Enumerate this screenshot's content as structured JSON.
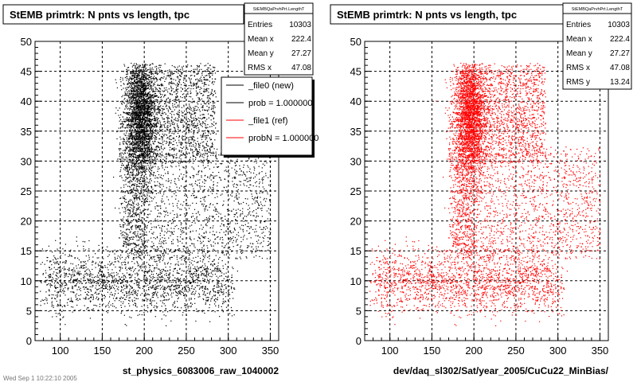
{
  "chart_data": [
    {
      "type": "scatter",
      "title": "StEMB primtrk: N pnts vs length, tpc",
      "stats_header": "StEMBQaPrvhPrt.LengthT",
      "stats": [
        {
          "label": "Entries",
          "value": "10303"
        },
        {
          "label": "Mean x",
          "value": "222.4"
        },
        {
          "label": "Mean y",
          "value": "27.27"
        },
        {
          "label": "RMS x",
          "value": "47.08"
        }
      ],
      "xlabel": "st_physics_6083006_raw_1040002",
      "xlim": [
        70,
        360
      ],
      "ylim": [
        0,
        50
      ],
      "xticks": [
        "100",
        "150",
        "200",
        "250",
        "300",
        "350"
      ],
      "yticks": [
        "0",
        "5",
        "10",
        "15",
        "20",
        "25",
        "30",
        "35",
        "40",
        "45",
        "50"
      ],
      "marker_color": "#000000",
      "grid": true,
      "legend_placement": "top-right",
      "legend": [
        {
          "label": "_file0 (new)",
          "color": "#000000"
        },
        {
          "label": "prob = 1.000000",
          "color": "#000000"
        },
        {
          "label": "_file1 (ref)",
          "color": "#ff0000"
        },
        {
          "label": "probN = 1.000000",
          "color": "#ff0000"
        }
      ]
    },
    {
      "type": "scatter",
      "title": "StEMB primtrk: N pnts vs length, tpc",
      "stats_header": "StEMBQaPrvhPrt.LengthT",
      "stats": [
        {
          "label": "Entries",
          "value": "10303"
        },
        {
          "label": "Mean x",
          "value": "222.4"
        },
        {
          "label": "Mean y",
          "value": "27.27"
        },
        {
          "label": "RMS x",
          "value": "47.08"
        },
        {
          "label": "RMS y",
          "value": "13.24"
        }
      ],
      "xlabel": "dev/daq_sl302/Sat/year_2005/CuCu22_MinBias/",
      "xlim": [
        70,
        360
      ],
      "ylim": [
        0,
        50
      ],
      "xticks": [
        "100",
        "150",
        "200",
        "250",
        "300",
        "350"
      ],
      "yticks": [
        "0",
        "5",
        "10",
        "15",
        "20",
        "25",
        "30",
        "35",
        "40",
        "45",
        "50"
      ],
      "marker_color": "#ff0000",
      "grid": true
    }
  ],
  "footer": "Wed Sep 1 10:22:10 2005"
}
